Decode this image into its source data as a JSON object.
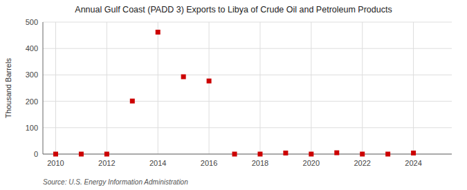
{
  "chart_data": {
    "type": "scatter",
    "title": "Annual Gulf Coast (PADD 3) Exports to Libya of Crude Oil and Petroleum Products",
    "y_label": "Thousand Barrels",
    "source": "Source: U.S. Energy Information Administration",
    "x": [
      2010,
      2011,
      2012,
      2013,
      2014,
      2015,
      2016,
      2017,
      2018,
      2019,
      2020,
      2021,
      2022,
      2023,
      2024
    ],
    "values": [
      0,
      0,
      0,
      201,
      462,
      293,
      277,
      0,
      0,
      4,
      0,
      5,
      0,
      0,
      4
    ],
    "color": "#cc0000",
    "marker": "square",
    "xlim": [
      2009.5,
      2025.5
    ],
    "ylim": [
      0,
      500
    ],
    "xticks": [
      2010,
      2012,
      2014,
      2016,
      2018,
      2020,
      2022,
      2024
    ],
    "yticks": [
      0,
      100,
      200,
      300,
      400,
      500
    ],
    "grid": true
  }
}
